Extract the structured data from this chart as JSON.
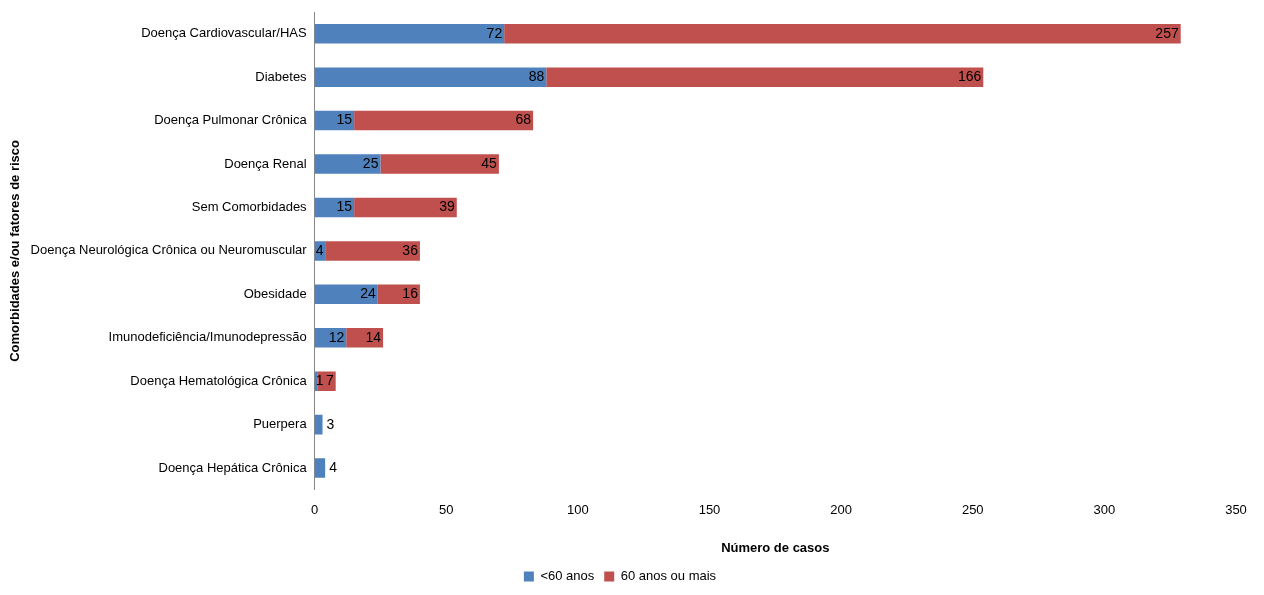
{
  "chart_data": {
    "type": "bar",
    "orientation": "horizontal",
    "stacked": true,
    "xlabel": "Número de casos",
    "ylabel": "Comorbidades e/ou fatores de risco",
    "categories": [
      "Doença Cardiovascular/HAS",
      "Diabetes",
      "Doença Pulmonar Crônica",
      "Doença Renal",
      "Sem Comorbidades",
      "Doença Neurológica Crônica ou Neuromuscular",
      "Obesidade",
      "Imunodeficiência/Imunodepressão",
      "Doença Hematológica Crônica",
      "Puerpera",
      "Doença Hepática Crônica"
    ],
    "series": [
      {
        "name": "<60 anos",
        "color": "#4f81bd",
        "values": [
          72,
          88,
          15,
          25,
          15,
          4,
          24,
          12,
          1,
          3,
          4
        ]
      },
      {
        "name": "60 anos ou mais",
        "color": "#c0504d",
        "values": [
          257,
          166,
          68,
          45,
          39,
          36,
          16,
          14,
          7,
          null,
          null
        ]
      }
    ],
    "xlim": [
      0,
      350
    ],
    "xticks": [
      0,
      50,
      100,
      150,
      200,
      250,
      300,
      350
    ],
    "grid": false,
    "legend": "bottom",
    "data_labels": true
  }
}
